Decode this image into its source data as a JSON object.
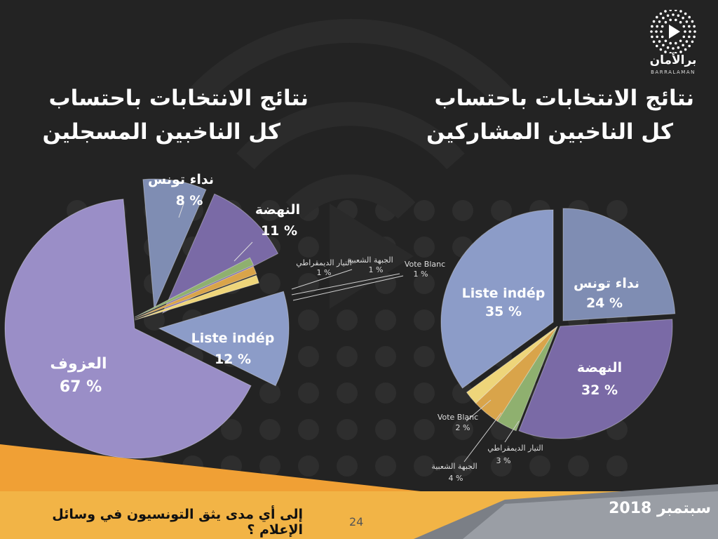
{
  "logo": {
    "name_ar": "برالأمان",
    "name_en": "BARRALAMAN"
  },
  "charts_titles": {
    "left": [
      "نتائج الانتخابات باحتساب",
      "كل الناخبين المسجلين"
    ],
    "right": [
      "نتائج الانتخابات باحتساب",
      "كل الناخبين المشاركين"
    ]
  },
  "footer": {
    "question": "إلى أي مدى يثق التونسيون في وسائل الإعلام ؟",
    "page_number": "24",
    "date": "سبتمبر 2018"
  },
  "chart_data": [
    {
      "type": "pie",
      "title": "نتائج الانتخابات باحتساب كل الناخبين المسجلين",
      "slices": [
        {
          "name": "نداء تونس",
          "value": 8,
          "label": "8 %",
          "color": "#7f8db3"
        },
        {
          "name": "النهضة",
          "value": 11,
          "label": "11 %",
          "color": "#7a6aa6"
        },
        {
          "name": "التيار الديمقراطي",
          "value": 1,
          "label": "1 %",
          "color": "#8fb06f"
        },
        {
          "name": "الجبهة الشعبية",
          "value": 1,
          "label": "1 %",
          "color": "#d9a44a"
        },
        {
          "name": "Vote Blanc",
          "value": 1,
          "label": "1 %",
          "color": "#eed57a"
        },
        {
          "name": "Liste indép",
          "value": 12,
          "label": "12 %",
          "color": "#8c9cc8"
        },
        {
          "name": "العزوف",
          "value": 67,
          "label": "67 %",
          "color": "#9a8ec7"
        }
      ]
    },
    {
      "type": "pie",
      "title": "نتائج الانتخابات باحتساب كل الناخبين المشاركين",
      "slices": [
        {
          "name": "نداء تونس",
          "value": 24,
          "label": "24 %",
          "color": "#7f8db3"
        },
        {
          "name": "النهضة",
          "value": 32,
          "label": "32 %",
          "color": "#7a6aa6"
        },
        {
          "name": "التيار الديمقراطي",
          "value": 3,
          "label": "3 %",
          "color": "#8fb06f"
        },
        {
          "name": "الجبهة الشعبية",
          "value": 4,
          "label": "4 %",
          "color": "#d9a44a"
        },
        {
          "name": "Vote Blanc",
          "value": 2,
          "label": "2 %",
          "color": "#eed57a"
        },
        {
          "name": "Liste indép",
          "value": 35,
          "label": "35 %",
          "color": "#8c9cc8"
        }
      ]
    }
  ]
}
